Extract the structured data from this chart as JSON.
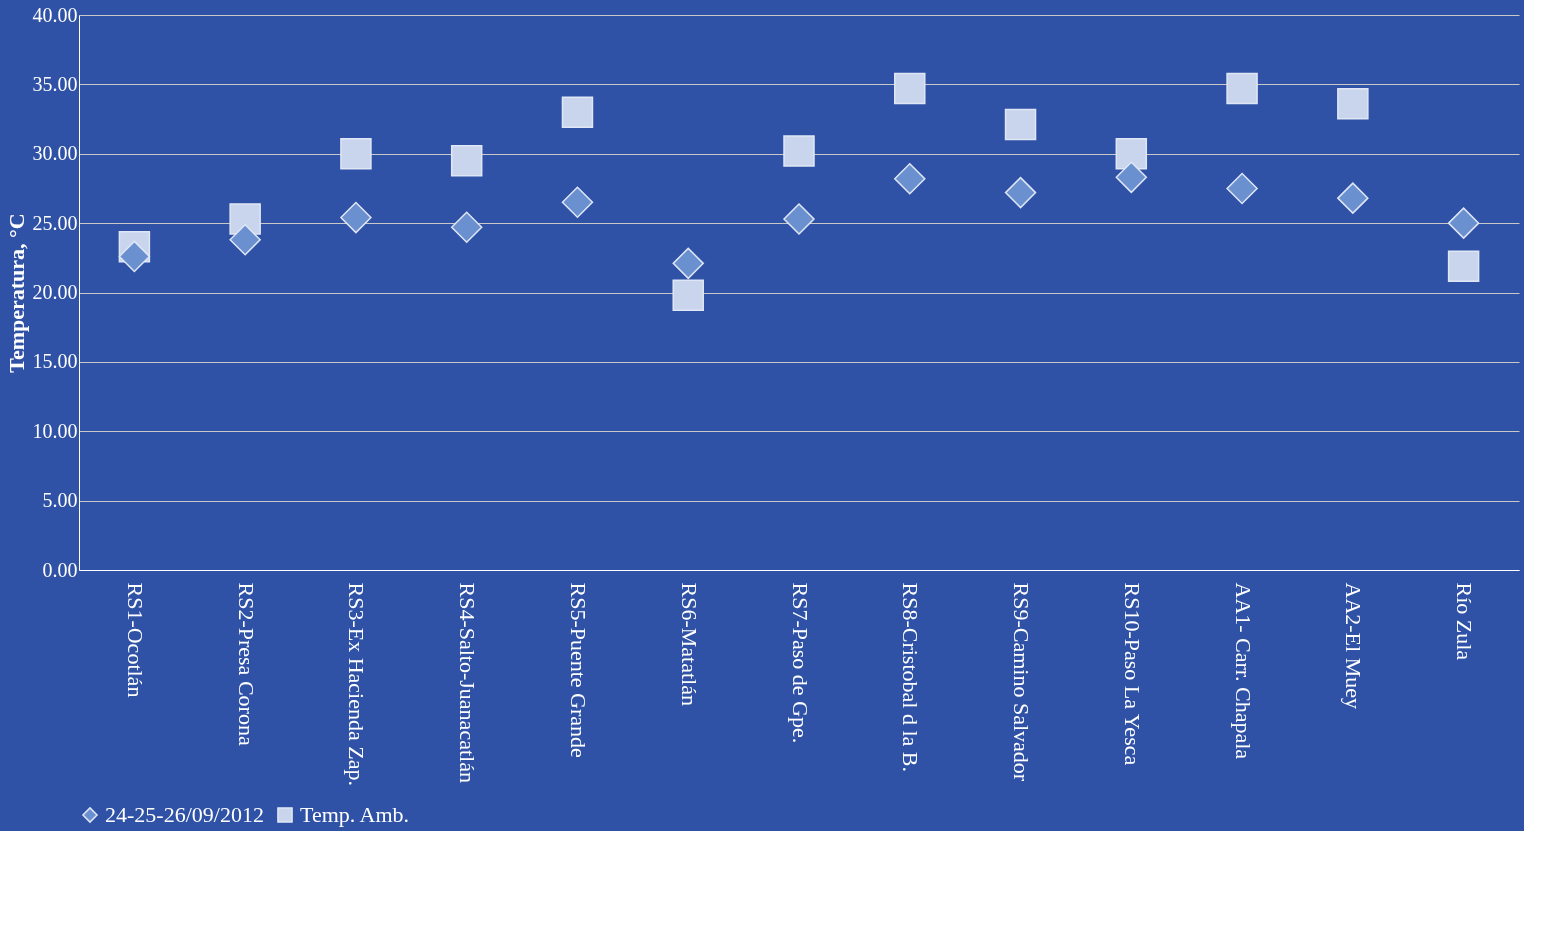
{
  "chart_data": {
    "type": "scatter",
    "ylabel": "Temperatura, °C",
    "categories": [
      "RS1-Ocotlán",
      "RS2-Presa Corona",
      "RS3-Ex Hacienda Zap.",
      "RS4-Salto-Juanacatlán",
      "RS5-Puente Grande",
      "RS6-Matatlán",
      "RS7-Paso de Gpe.",
      "RS8-Cristobal d la B.",
      "RS9-Camino Salvador",
      "RS10-Paso La Yesca",
      "AA1- Carr. Chapala",
      "AA2-El Muey",
      "Río Zula"
    ],
    "series": [
      {
        "name": "24-25-26/09/2012",
        "color": "#6a90d0",
        "marker": "diamond",
        "values": [
          22.6,
          23.8,
          25.4,
          24.7,
          26.5,
          22.1,
          25.3,
          28.2,
          27.2,
          28.3,
          27.5,
          26.8,
          25.0
        ]
      },
      {
        "name": "Temp. Amb.",
        "color": "#c9d5ec",
        "marker": "square",
        "values": [
          23.3,
          25.3,
          30.0,
          29.5,
          33.0,
          19.8,
          30.2,
          34.7,
          32.1,
          30.0,
          34.7,
          33.6,
          21.9
        ]
      }
    ],
    "ylim": [
      0,
      40
    ],
    "yticks": [
      {
        "value": 0,
        "label": "0.00"
      },
      {
        "value": 5,
        "label": "5.00"
      },
      {
        "value": 10,
        "label": "10.00"
      },
      {
        "value": 15,
        "label": "15.00"
      },
      {
        "value": 20,
        "label": "20.00"
      },
      {
        "value": 25,
        "label": "25.00"
      },
      {
        "value": 30,
        "label": "30.00"
      },
      {
        "value": 35,
        "label": "35.00"
      },
      {
        "value": 40,
        "label": "40.00"
      }
    ],
    "grid": "y",
    "legend": "bottom"
  }
}
